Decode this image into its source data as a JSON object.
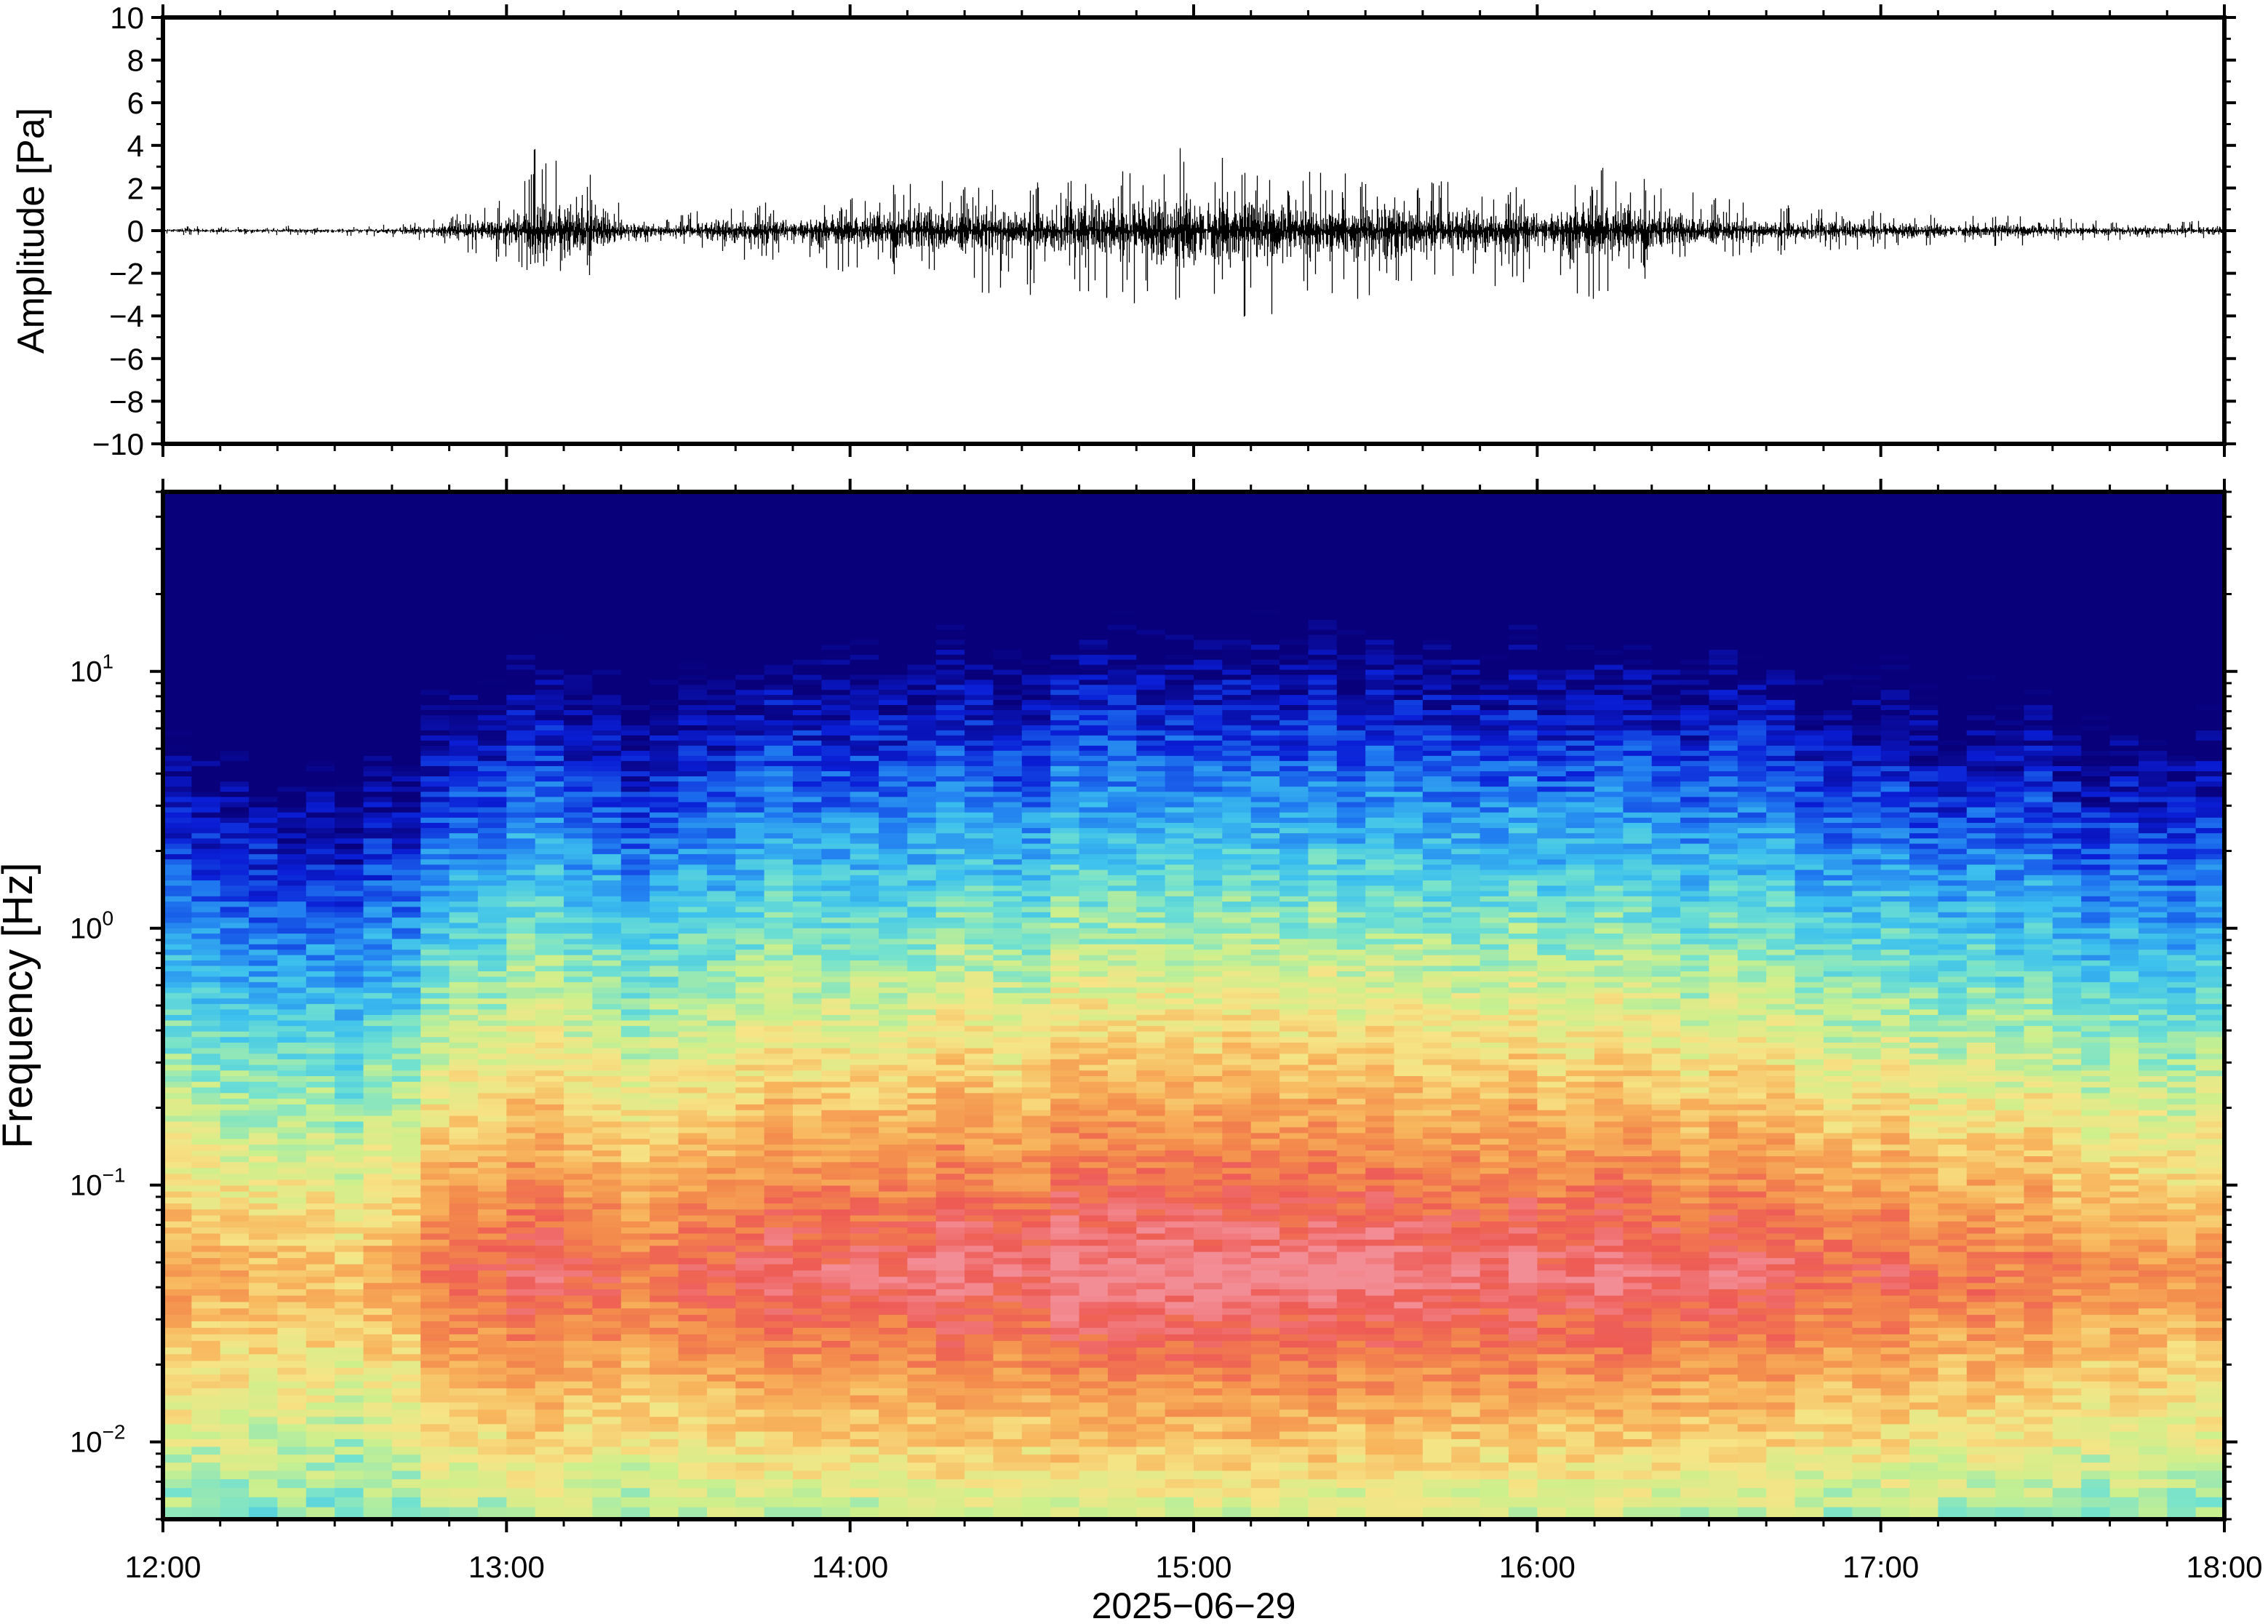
{
  "chart_data": [
    {
      "type": "line",
      "ylabel": "Amplitude [Pa]",
      "ylim": [
        -10,
        10
      ],
      "yticks": [
        10,
        8,
        6,
        4,
        2,
        0,
        -2,
        -4,
        -6,
        -8,
        -10
      ],
      "ytick_labels": [
        "10",
        "8",
        "6",
        "4",
        "2",
        "0",
        "−2",
        "−4",
        "−6",
        "−8",
        "−10"
      ],
      "x_range": [
        "12:00",
        "18:00"
      ],
      "envelope": {
        "t_hours": [
          0,
          0.6,
          0.78,
          0.95,
          1.05,
          1.1,
          1.3,
          1.35,
          1.45,
          1.55,
          1.65,
          1.8,
          2.0,
          2.2,
          2.4,
          2.6,
          2.8,
          3.0,
          3.2,
          3.4,
          3.6,
          3.8,
          4.0,
          4.2,
          4.4,
          4.6,
          4.8,
          5.0,
          5.2,
          5.4,
          5.6,
          5.8,
          6.0
        ],
        "max_pa": [
          0.2,
          0.25,
          0.5,
          1.2,
          2.2,
          5.0,
          2.0,
          0.8,
          0.6,
          0.9,
          1.4,
          1.3,
          1.6,
          2.6,
          2.0,
          2.4,
          2.8,
          4.2,
          2.8,
          2.8,
          2.6,
          2.2,
          2.0,
          3.2,
          2.0,
          1.4,
          1.1,
          0.9,
          0.7,
          0.8,
          0.5,
          0.4,
          0.5
        ],
        "min_pa": [
          -0.2,
          -0.25,
          -0.5,
          -1.4,
          -2.2,
          -2.5,
          -2.0,
          -0.8,
          -0.6,
          -1.0,
          -1.4,
          -1.5,
          -2.0,
          -2.4,
          -3.4,
          -2.8,
          -3.5,
          -3.6,
          -4.6,
          -3.4,
          -3.0,
          -2.8,
          -2.6,
          -3.4,
          -1.8,
          -1.3,
          -1.0,
          -0.9,
          -0.7,
          -0.8,
          -0.5,
          -0.4,
          -0.5
        ]
      }
    },
    {
      "type": "heatmap",
      "ylabel": "Frequency [Hz]",
      "xlabel": "2025−06−29",
      "y_scale": "log",
      "ylim_hz": [
        0.005,
        50
      ],
      "y_ticks": [
        {
          "base": "10",
          "exp": "1",
          "value": 10
        },
        {
          "base": "10",
          "exp": "0",
          "value": 1
        },
        {
          "base": "10",
          "exp": "−1",
          "value": 0.1
        },
        {
          "base": "10",
          "exp": "−2",
          "value": 0.01
        }
      ],
      "x_ticks": [
        "12:00",
        "13:00",
        "14:00",
        "15:00",
        "16:00",
        "17:00",
        "18:00"
      ],
      "colormap": [
        "#08007a",
        "#0a1ed6",
        "#1f78f0",
        "#3cc0ee",
        "#72e2cf",
        "#cdf08c",
        "#f6e486",
        "#f8b55c",
        "#f38a4c",
        "#ee5b55",
        "#f38d95"
      ],
      "activity_profile": {
        "t_hours": [
          0,
          0.3,
          0.5,
          0.7,
          0.8,
          1.0,
          1.2,
          1.35,
          1.4,
          1.45,
          1.6,
          1.9,
          2.2,
          2.5,
          2.9,
          3.1,
          3.4,
          3.7,
          4.0,
          4.3,
          4.6,
          4.9,
          5.2,
          5.5,
          5.7,
          5.85,
          6.0
        ],
        "level": [
          0.32,
          0.27,
          0.18,
          0.2,
          0.55,
          0.72,
          0.7,
          0.66,
          0.3,
          0.62,
          0.7,
          0.76,
          0.8,
          0.84,
          0.92,
          0.94,
          0.9,
          0.88,
          0.85,
          0.82,
          0.72,
          0.62,
          0.56,
          0.5,
          0.38,
          0.32,
          0.36
        ]
      }
    }
  ]
}
